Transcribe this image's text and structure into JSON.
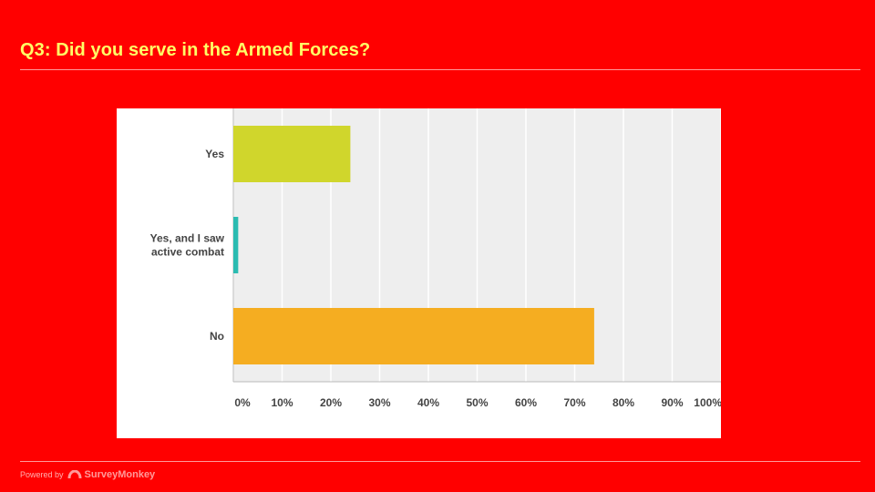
{
  "slide": {
    "title": "Q3: Did you serve in the Armed Forces?"
  },
  "footer": {
    "powered_by": "Powered by",
    "brand": "SurveyMonkey"
  },
  "colors": {
    "background": "#ff0000",
    "title": "#ffff66",
    "plot_background": "#eeeeee",
    "gridline": "#ffffff"
  },
  "chart_data": {
    "type": "bar",
    "orientation": "horizontal",
    "categories": [
      "Yes",
      "Yes, and I saw active combat",
      "No"
    ],
    "category_label_lines": [
      [
        "Yes"
      ],
      [
        "Yes, and I saw",
        "active combat"
      ],
      [
        "No"
      ]
    ],
    "values": [
      24,
      1,
      74
    ],
    "bar_colors": [
      "#d0d62c",
      "#2bbbb1",
      "#f5ad21"
    ],
    "xlim": [
      0,
      100
    ],
    "x_ticks": [
      0,
      10,
      20,
      30,
      40,
      50,
      60,
      70,
      80,
      90,
      100
    ],
    "x_tick_labels": [
      "0%",
      "10%",
      "20%",
      "30%",
      "40%",
      "50%",
      "60%",
      "70%",
      "80%",
      "90%",
      "100%"
    ],
    "grid": true,
    "legend": "none",
    "title": "",
    "xlabel": "",
    "ylabel": ""
  }
}
